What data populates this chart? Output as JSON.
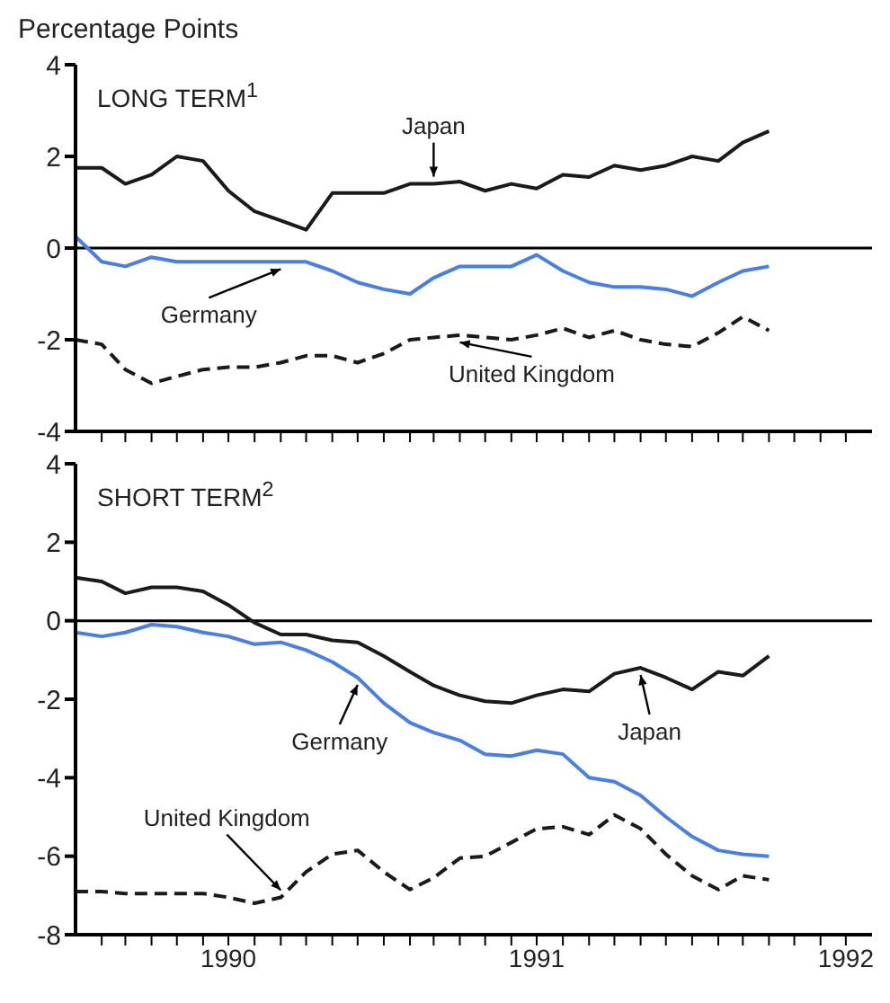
{
  "chart_data": [
    {
      "type": "line",
      "ylabel": "Percentage Points",
      "title": "LONG TERM$^{1}$",
      "x": [
        "1990-01",
        "1990-02",
        "1990-03",
        "1990-04",
        "1990-05",
        "1990-06",
        "1990-07",
        "1990-08",
        "1990-09",
        "1990-10",
        "1990-11",
        "1990-12",
        "1991-01",
        "1991-02",
        "1991-03",
        "1991-04",
        "1991-05",
        "1991-06",
        "1991-07",
        "1991-08",
        "1991-09",
        "1991-10",
        "1991-11",
        "1991-12",
        "1992-01",
        "1992-02",
        "1992-03",
        "1992-04"
      ],
      "series": [
        {
          "name": "Japan",
          "color": "#1a1a1a",
          "line_style": "solid",
          "values": [
            1.75,
            1.75,
            1.4,
            1.6,
            2.0,
            1.9,
            1.25,
            0.8,
            0.6,
            0.4,
            1.2,
            1.2,
            1.2,
            1.4,
            1.4,
            1.45,
            1.25,
            1.4,
            1.3,
            1.6,
            1.55,
            1.8,
            1.7,
            1.8,
            2.0,
            1.9,
            2.3,
            2.55
          ]
        },
        {
          "name": "Germany",
          "color": "#4a7fe0",
          "line_style": "solid",
          "values": [
            0.25,
            -0.3,
            -0.4,
            -0.2,
            -0.3,
            -0.3,
            -0.3,
            -0.3,
            -0.3,
            -0.3,
            -0.5,
            -0.75,
            -0.9,
            -1.0,
            -0.65,
            -0.4,
            -0.4,
            -0.4,
            -0.15,
            -0.5,
            -0.75,
            -0.85,
            -0.85,
            -0.9,
            -1.05,
            -0.75,
            -0.5,
            -0.4
          ]
        },
        {
          "name": "United Kingdom",
          "color": "#1a1a1a",
          "line_style": "dashed",
          "values": [
            -2.0,
            -2.1,
            -2.65,
            -2.95,
            -2.8,
            -2.65,
            -2.6,
            -2.6,
            -2.5,
            -2.35,
            -2.35,
            -2.5,
            -2.3,
            -2.0,
            -1.95,
            -1.9,
            -1.95,
            -2.0,
            -1.9,
            -1.75,
            -1.95,
            -1.8,
            -2.0,
            -2.1,
            -2.15,
            -1.85,
            -1.5,
            -1.8
          ]
        }
      ],
      "xlim": [
        "1990-01",
        "1992-08"
      ],
      "xticks": [
        {
          "value": "1990-02",
          "label": null
        },
        {
          "value": "1990-03",
          "label": null
        },
        {
          "value": "1990-04",
          "label": null
        },
        {
          "value": "1990-05",
          "label": null
        },
        {
          "value": "1990-06",
          "label": null
        },
        {
          "value": "1990-07",
          "label": null
        },
        {
          "value": "1990-08",
          "label": null
        },
        {
          "value": "1990-09",
          "label": null
        },
        {
          "value": "1990-10",
          "label": null
        },
        {
          "value": "1990-11",
          "label": null
        },
        {
          "value": "1990-12",
          "label": null
        },
        {
          "value": "1991-01",
          "label": null
        },
        {
          "value": "1991-02",
          "label": null
        },
        {
          "value": "1991-03",
          "label": null
        },
        {
          "value": "1991-04",
          "label": null
        },
        {
          "value": "1991-05",
          "label": null
        },
        {
          "value": "1991-06",
          "label": null
        },
        {
          "value": "1991-07",
          "label": null
        },
        {
          "value": "1991-08",
          "label": null
        },
        {
          "value": "1991-09",
          "label": null
        },
        {
          "value": "1991-10",
          "label": null
        },
        {
          "value": "1991-11",
          "label": null
        },
        {
          "value": "1991-12",
          "label": null
        },
        {
          "value": "1992-01",
          "label": null
        },
        {
          "value": "1992-02",
          "label": null
        },
        {
          "value": "1992-03",
          "label": null
        },
        {
          "value": "1992-04",
          "label": null
        },
        {
          "value": "1992-05",
          "label": null
        },
        {
          "value": "1992-06",
          "label": null
        },
        {
          "value": "1992-07",
          "label": null
        }
      ],
      "ylim": [
        -4,
        4
      ],
      "yticks": [
        -4,
        -2,
        0,
        2,
        4
      ],
      "ref_lines": [
        {
          "axis": "y",
          "value": 0,
          "color": "#000000"
        }
      ],
      "tick_labels": "y"
    },
    {
      "type": "line",
      "title": "SHORT TERM$^{2}$",
      "x": [
        "1990-01",
        "1990-02",
        "1990-03",
        "1990-04",
        "1990-05",
        "1990-06",
        "1990-07",
        "1990-08",
        "1990-09",
        "1990-10",
        "1990-11",
        "1990-12",
        "1991-01",
        "1991-02",
        "1991-03",
        "1991-04",
        "1991-05",
        "1991-06",
        "1991-07",
        "1991-08",
        "1991-09",
        "1991-10",
        "1991-11",
        "1991-12",
        "1992-01",
        "1992-02",
        "1992-03",
        "1992-04"
      ],
      "series": [
        {
          "name": "Japan",
          "color": "#1a1a1a",
          "line_style": "solid",
          "values": [
            1.1,
            1.0,
            0.7,
            0.85,
            0.85,
            0.75,
            0.4,
            -0.05,
            -0.35,
            -0.35,
            -0.5,
            -0.55,
            -0.9,
            -1.3,
            -1.65,
            -1.9,
            -2.05,
            -2.1,
            -1.9,
            -1.75,
            -1.8,
            -1.35,
            -1.2,
            -1.45,
            -1.75,
            -1.3,
            -1.4,
            -0.9
          ]
        },
        {
          "name": "Germany",
          "color": "#4a7fe0",
          "line_style": "solid",
          "values": [
            -0.3,
            -0.4,
            -0.3,
            -0.1,
            -0.15,
            -0.3,
            -0.4,
            -0.6,
            -0.55,
            -0.75,
            -1.05,
            -1.45,
            -2.1,
            -2.6,
            -2.85,
            -3.05,
            -3.4,
            -3.45,
            -3.3,
            -3.4,
            -4.0,
            -4.1,
            -4.45,
            -5.0,
            -5.5,
            -5.85,
            -5.95,
            -6.0
          ]
        },
        {
          "name": "United Kingdom",
          "color": "#1a1a1a",
          "line_style": "dashed",
          "values": [
            -6.9,
            -6.9,
            -6.95,
            -6.95,
            -6.95,
            -6.95,
            -7.05,
            -7.2,
            -7.05,
            -6.4,
            -5.95,
            -5.85,
            -6.4,
            -6.85,
            -6.55,
            -6.05,
            -6.0,
            -5.65,
            -5.3,
            -5.25,
            -5.45,
            -4.95,
            -5.3,
            -5.95,
            -6.5,
            -6.85,
            -6.5,
            -6.6
          ]
        }
      ],
      "xlim": [
        "1990-01",
        "1992-08"
      ],
      "xticks": [
        {
          "value": "1990-02",
          "label": null
        },
        {
          "value": "1990-03",
          "label": null
        },
        {
          "value": "1990-04",
          "label": null
        },
        {
          "value": "1990-05",
          "label": null
        },
        {
          "value": "1990-06",
          "label": null
        },
        {
          "value": "1990-07",
          "label": "1990"
        },
        {
          "value": "1990-08",
          "label": null
        },
        {
          "value": "1990-09",
          "label": null
        },
        {
          "value": "1990-10",
          "label": null
        },
        {
          "value": "1990-11",
          "label": null
        },
        {
          "value": "1990-12",
          "label": null
        },
        {
          "value": "1991-01",
          "label": null
        },
        {
          "value": "1991-02",
          "label": null
        },
        {
          "value": "1991-03",
          "label": null
        },
        {
          "value": "1991-04",
          "label": null
        },
        {
          "value": "1991-05",
          "label": null
        },
        {
          "value": "1991-06",
          "label": null
        },
        {
          "value": "1991-07",
          "label": "1991"
        },
        {
          "value": "1991-08",
          "label": null
        },
        {
          "value": "1991-09",
          "label": null
        },
        {
          "value": "1991-10",
          "label": null
        },
        {
          "value": "1991-11",
          "label": null
        },
        {
          "value": "1991-12",
          "label": null
        },
        {
          "value": "1992-01",
          "label": null
        },
        {
          "value": "1992-02",
          "label": null
        },
        {
          "value": "1992-03",
          "label": null
        },
        {
          "value": "1992-04",
          "label": null
        },
        {
          "value": "1992-05",
          "label": null
        },
        {
          "value": "1992-06",
          "label": null
        },
        {
          "value": "1992-07",
          "label": "1992"
        }
      ],
      "ylim": [
        -8,
        4
      ],
      "yticks": [
        -8,
        -6,
        -4,
        -2,
        0,
        2,
        4
      ],
      "ref_lines": [
        {
          "axis": "y",
          "value": 0,
          "color": "#000000"
        }
      ]
    }
  ]
}
